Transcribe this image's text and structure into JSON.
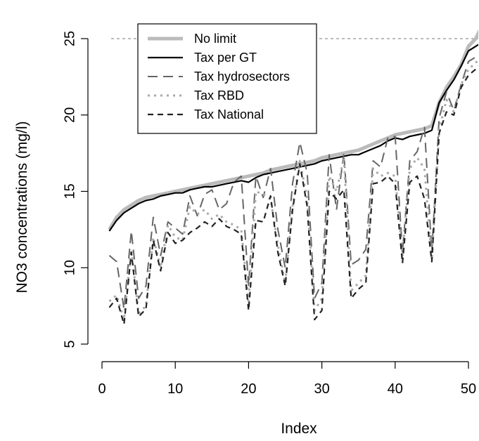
{
  "chart_data": {
    "type": "line",
    "title": "",
    "xlabel": "Index",
    "ylabel": "NO3 concentrations (mg/l)",
    "xlim": [
      1,
      52
    ],
    "ylim": [
      5,
      26
    ],
    "x_ticks": [
      "0",
      "10",
      "20",
      "30",
      "40",
      "50"
    ],
    "y_ticks": [
      "5",
      "10",
      "15",
      "20",
      "25"
    ],
    "reference_line": {
      "value": 25,
      "style": "dashed",
      "color": "#777777"
    },
    "legend_position": "top-left",
    "grid": false,
    "series": [
      {
        "name": "No limit",
        "color": "#bbbbbb",
        "style": "solid-thick",
        "values": [
          12.5,
          13.3,
          13.8,
          14.1,
          14.4,
          14.6,
          14.7,
          14.8,
          14.9,
          15.0,
          15.1,
          15.2,
          15.3,
          15.4,
          15.5,
          15.6,
          15.7,
          15.8,
          15.9,
          16.0,
          16.1,
          16.2,
          16.4,
          16.5,
          16.6,
          16.7,
          16.8,
          16.9,
          17.0,
          17.2,
          17.3,
          17.4,
          17.5,
          17.6,
          17.7,
          17.9,
          18.1,
          18.3,
          18.5,
          18.7,
          18.8,
          18.9,
          19.0,
          19.1,
          19.3,
          20.8,
          21.8,
          22.5,
          23.3,
          24.5,
          25.0,
          26.0
        ]
      },
      {
        "name": "Tax per GT",
        "color": "#000000",
        "style": "solid",
        "values": [
          12.4,
          13.1,
          13.6,
          13.9,
          14.2,
          14.4,
          14.5,
          14.7,
          14.8,
          14.9,
          14.9,
          15.1,
          15.2,
          15.3,
          15.3,
          15.4,
          15.5,
          15.6,
          15.7,
          15.6,
          15.9,
          16.1,
          16.2,
          16.3,
          16.4,
          16.5,
          16.6,
          16.7,
          16.8,
          17.0,
          17.1,
          17.2,
          17.3,
          17.4,
          17.4,
          17.6,
          17.8,
          18.0,
          18.3,
          18.5,
          18.4,
          18.6,
          18.7,
          18.8,
          19.0,
          20.8,
          21.6,
          22.3,
          23.2,
          24.2,
          24.5,
          24.8
        ]
      },
      {
        "name": "Tax hydrosectors",
        "color": "#666666",
        "style": "long-dash",
        "values": [
          10.8,
          10.4,
          7.3,
          12.4,
          8.0,
          8.8,
          13.3,
          10.8,
          13.0,
          12.6,
          12.2,
          14.7,
          13.4,
          14.8,
          15.1,
          13.8,
          14.2,
          15.6,
          16.0,
          8.8,
          16.0,
          14.6,
          16.5,
          12.5,
          10.0,
          15.5,
          18.2,
          16.2,
          8.0,
          9.0,
          17.4,
          13.8,
          17.5,
          10.2,
          10.5,
          11.2,
          17.0,
          16.6,
          18.5,
          18.6,
          11.0,
          17.0,
          17.6,
          19.2,
          11.0,
          19.8,
          21.5,
          20.3,
          22.0,
          23.5,
          23.8,
          24.0
        ]
      },
      {
        "name": "Tax RBD",
        "color": "#aaaaaa",
        "style": "dotted",
        "values": [
          7.8,
          8.2,
          6.6,
          11.2,
          7.0,
          7.5,
          12.0,
          10.0,
          12.8,
          12.0,
          11.8,
          14.0,
          13.5,
          13.8,
          13.2,
          13.5,
          13.0,
          12.8,
          12.5,
          7.8,
          15.0,
          14.8,
          14.5,
          11.5,
          9.0,
          14.0,
          17.0,
          14.5,
          7.2,
          8.0,
          16.0,
          15.0,
          17.2,
          8.5,
          9.0,
          9.5,
          16.5,
          16.0,
          16.2,
          16.0,
          10.8,
          16.5,
          17.2,
          16.5,
          10.5,
          19.0,
          21.0,
          20.2,
          22.0,
          23.0,
          23.4,
          24.2
        ]
      },
      {
        "name": "Tax National",
        "color": "#222222",
        "style": "dash",
        "values": [
          7.4,
          8.0,
          6.3,
          11.0,
          6.8,
          7.3,
          11.8,
          9.8,
          12.3,
          11.6,
          11.8,
          12.3,
          12.6,
          13.0,
          12.7,
          13.2,
          12.7,
          12.5,
          12.2,
          7.2,
          13.1,
          13.0,
          14.7,
          11.0,
          8.8,
          13.8,
          16.8,
          14.0,
          6.6,
          7.2,
          15.0,
          14.5,
          15.1,
          8.0,
          8.6,
          9.0,
          15.5,
          15.6,
          16.0,
          15.5,
          10.3,
          15.6,
          16.0,
          14.5,
          10.4,
          18.8,
          20.2,
          20.0,
          21.8,
          22.6,
          23.0,
          23.5
        ]
      }
    ]
  }
}
